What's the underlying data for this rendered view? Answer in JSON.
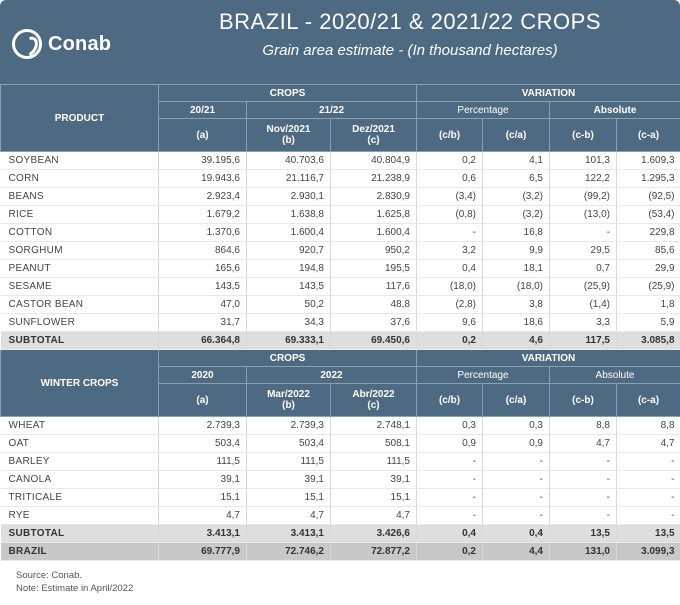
{
  "header": {
    "logo_text": "Conab",
    "title": "BRAZIL - 2020/21 & 2021/22 CROPS",
    "subtitle": "Grain area estimate - (In thousand hectares)"
  },
  "summer_header": {
    "product": "PRODUCT",
    "crops": "CROPS",
    "variation": "VARIATION",
    "season_a": "20/21",
    "season_bc": "21/22",
    "percentage": "Percentage",
    "absolute": "Absolute",
    "col_a": "(a)",
    "col_b_line1": "Nov/2021",
    "col_b_line2": "(b)",
    "col_c_line1": "Dez/2021",
    "col_c_line2": "(c)",
    "col_cb": "(c/b)",
    "col_ca": "(c/a)",
    "col_cmb": "(c-b)",
    "col_cma": "(c-a)"
  },
  "summer_rows": [
    {
      "name": "SOYBEAN",
      "a": "39.195,6",
      "b": "40.703,6",
      "c": "40.804,9",
      "pcb": "0,2",
      "pca": "4,1",
      "acb": "101,3",
      "aca": "1.609,3"
    },
    {
      "name": "CORN",
      "a": "19.943,6",
      "b": "21.116,7",
      "c": "21.238,9",
      "pcb": "0,6",
      "pca": "6,5",
      "acb": "122,2",
      "aca": "1.295,3"
    },
    {
      "name": "BEANS",
      "a": "2.923,4",
      "b": "2.930,1",
      "c": "2.830,9",
      "pcb": "(3,4)",
      "pca": "(3,2)",
      "acb": "(99,2)",
      "aca": "(92,5)"
    },
    {
      "name": "RICE",
      "a": "1.679,2",
      "b": "1.638,8",
      "c": "1.625,8",
      "pcb": "(0,8)",
      "pca": "(3,2)",
      "acb": "(13,0)",
      "aca": "(53,4)"
    },
    {
      "name": "COTTON",
      "a": "1.370,6",
      "b": "1.600,4",
      "c": "1.600,4",
      "pcb": "-",
      "pca": "16,8",
      "acb": "-",
      "aca": "229,8"
    },
    {
      "name": "SORGHUM",
      "a": "864,6",
      "b": "920,7",
      "c": "950,2",
      "pcb": "3,2",
      "pca": "9,9",
      "acb": "29,5",
      "aca": "85,6"
    },
    {
      "name": "PEANUT",
      "a": "165,6",
      "b": "194,8",
      "c": "195,5",
      "pcb": "0,4",
      "pca": "18,1",
      "acb": "0,7",
      "aca": "29,9"
    },
    {
      "name": "SESAME",
      "a": "143,5",
      "b": "143,5",
      "c": "117,6",
      "pcb": "(18,0)",
      "pca": "(18,0)",
      "acb": "(25,9)",
      "aca": "(25,9)"
    },
    {
      "name": "CASTOR BEAN",
      "a": "47,0",
      "b": "50,2",
      "c": "48,8",
      "pcb": "(2,8)",
      "pca": "3,8",
      "acb": "(1,4)",
      "aca": "1,8"
    },
    {
      "name": "SUNFLOWER",
      "a": "31,7",
      "b": "34,3",
      "c": "37,6",
      "pcb": "9,6",
      "pca": "18,6",
      "acb": "3,3",
      "aca": "5,9"
    }
  ],
  "summer_subtotal": {
    "name": "SUBTOTAL",
    "a": "66.364,8",
    "b": "69.333,1",
    "c": "69.450,6",
    "pcb": "0,2",
    "pca": "4,6",
    "acb": "117,5",
    "aca": "3.085,8"
  },
  "winter_header": {
    "product": "WINTER CROPS",
    "crops": "CROPS",
    "variation": "VARIATION",
    "season_a": "2020",
    "season_bc": "2022",
    "percentage": "Percentage",
    "absolute": "Absolute",
    "col_a": "(a)",
    "col_b_line1": "Mar/2022",
    "col_b_line2": "(b)",
    "col_c_line1": "Abr/2022",
    "col_c_line2": "(c)",
    "col_cb": "(c/b)",
    "col_ca": "(c/a)",
    "col_cmb": "(c-b)",
    "col_cma": "(c-a)"
  },
  "winter_rows": [
    {
      "name": "WHEAT",
      "a": "2.739,3",
      "b": "2.739,3",
      "c": "2.748,1",
      "pcb": "0,3",
      "pca": "0,3",
      "acb": "8,8",
      "aca": "8,8"
    },
    {
      "name": "OAT",
      "a": "503,4",
      "b": "503,4",
      "c": "508,1",
      "pcb": "0,9",
      "pca": "0,9",
      "acb": "4,7",
      "aca": "4,7"
    },
    {
      "name": "BARLEY",
      "a": "111,5",
      "b": "111,5",
      "c": "111,5",
      "pcb": "-",
      "pca": "-",
      "acb": "-",
      "aca": "-"
    },
    {
      "name": "CANOLA",
      "a": "39,1",
      "b": "39,1",
      "c": "39,1",
      "pcb": "-",
      "pca": "-",
      "acb": "-",
      "aca": "-"
    },
    {
      "name": "TRITICALE",
      "a": "15,1",
      "b": "15,1",
      "c": "15,1",
      "pcb": "-",
      "pca": "-",
      "acb": "-",
      "aca": "-"
    },
    {
      "name": "RYE",
      "a": "4,7",
      "b": "4,7",
      "c": "4,7",
      "pcb": "-",
      "pca": "-",
      "acb": "-",
      "aca": "-"
    }
  ],
  "winter_subtotal": {
    "name": "SUBTOTAL",
    "a": "3.413,1",
    "b": "3.413,1",
    "c": "3.426,6",
    "pcb": "0,4",
    "pca": "0,4",
    "acb": "13,5",
    "aca": "13,5"
  },
  "brazil_total": {
    "name": "BRAZIL",
    "a": "69.777,9",
    "b": "72.746,2",
    "c": "72.877,2",
    "pcb": "0,2",
    "pca": "4,4",
    "acb": "131,0",
    "aca": "3.099,3"
  },
  "footer": {
    "source": "Source: Conab.",
    "note": "Note: Estimate in April/2022"
  },
  "colors": {
    "header_bg": "#4e6a82",
    "subtotal_bg": "#dedede",
    "total_bg": "#c8c8c8"
  }
}
